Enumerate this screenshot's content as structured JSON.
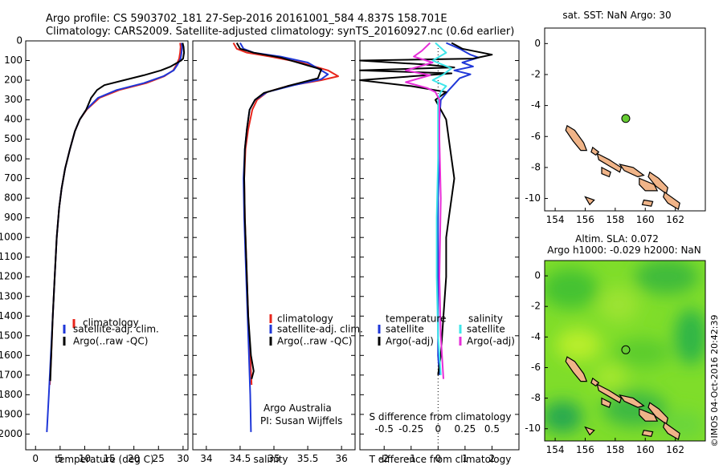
{
  "header": {
    "title_line1": "Argo profile: CS 5903702_181 27-Sep-2016 20161001_584 4.837S 158.701E",
    "title_line2": "Climatology: CARS2009. Satellite-adjusted climatology: synTS_20160927.nc (0.6d earlier)"
  },
  "colors": {
    "climatology": "#e8261c",
    "satellite": "#1f37d8",
    "argo": "#000000",
    "sal_satellite": "#3ee6ea",
    "sal_argo": "#e62ed8",
    "island": "#f0b488",
    "float": "#66cc33"
  },
  "chart_data": [
    {
      "type": "line",
      "id": "temperature",
      "xlabel": "temperature (deg C)",
      "xlim": [
        -2,
        31
      ],
      "ylim": [
        2080,
        0
      ],
      "x_ticks": [
        0,
        5,
        10,
        15,
        20,
        25,
        30
      ],
      "x_tick_labels": [
        "0",
        "5",
        "10",
        "15",
        "20",
        "25",
        "30"
      ],
      "y_ticks": [
        0,
        100,
        200,
        300,
        400,
        500,
        600,
        700,
        800,
        900,
        1000,
        1100,
        1200,
        1300,
        1400,
        1500,
        1600,
        1700,
        1800,
        1900,
        2000
      ],
      "y_tick_labels": [
        "0",
        "100",
        "200",
        "300",
        "400",
        "500",
        "600",
        "700",
        "800",
        "900",
        "1000",
        "1100",
        "1200",
        "1300",
        "1400",
        "1500",
        "1600",
        "1700",
        "1800",
        "1900",
        "2000"
      ],
      "legend": [
        "climatology",
        "satellite-adj. clim.",
        "Argo(..raw -QC)"
      ],
      "series": [
        {
          "name": "climatology",
          "color": "#e8261c",
          "points": [
            [
              29.4,
              10
            ],
            [
              29.5,
              30
            ],
            [
              29.4,
              60
            ],
            [
              29.2,
              90
            ],
            [
              28.7,
              120
            ],
            [
              28,
              150
            ],
            [
              26.2,
              180
            ],
            [
              22.5,
              215
            ],
            [
              17,
              250
            ],
            [
              13,
              290
            ],
            [
              10.4,
              350
            ],
            [
              9,
              400
            ],
            [
              8,
              460
            ],
            [
              7,
              550
            ],
            [
              6,
              650
            ],
            [
              5.3,
              750
            ],
            [
              4.8,
              850
            ],
            [
              4.3,
              1000
            ],
            [
              3.9,
              1200
            ],
            [
              3.5,
              1400
            ],
            [
              3.2,
              1600
            ],
            [
              2.9,
              1750
            ]
          ]
        },
        {
          "name": "satellite-adj. clim.",
          "color": "#1f37d8",
          "points": [
            [
              29.7,
              10
            ],
            [
              29.8,
              30
            ],
            [
              29.7,
              60
            ],
            [
              29.5,
              90
            ],
            [
              28.9,
              120
            ],
            [
              28.1,
              150
            ],
            [
              26,
              180
            ],
            [
              22,
              215
            ],
            [
              16.5,
              250
            ],
            [
              12.7,
              290
            ],
            [
              10.3,
              350
            ],
            [
              9,
              400
            ],
            [
              8,
              460
            ],
            [
              7,
              550
            ],
            [
              6,
              650
            ],
            [
              5.3,
              750
            ],
            [
              4.8,
              850
            ],
            [
              4.3,
              1000
            ],
            [
              3.9,
              1200
            ],
            [
              3.5,
              1400
            ],
            [
              3.1,
              1600
            ],
            [
              2.7,
              1800
            ],
            [
              2.3,
              1990
            ]
          ]
        },
        {
          "name": "Argo(..raw -QC)",
          "color": "#000000",
          "points": [
            [
              29.9,
              10
            ],
            [
              30.1,
              30
            ],
            [
              30.2,
              60
            ],
            [
              30,
              90
            ],
            [
              29.6,
              100
            ],
            [
              27.5,
              130
            ],
            [
              25.5,
              150
            ],
            [
              22,
              175
            ],
            [
              18,
              200
            ],
            [
              14,
              225
            ],
            [
              12.5,
              250
            ],
            [
              11.3,
              290
            ],
            [
              10.3,
              350
            ],
            [
              9,
              400
            ],
            [
              8,
              460
            ],
            [
              7,
              550
            ],
            [
              6,
              650
            ],
            [
              5.3,
              750
            ],
            [
              4.8,
              850
            ],
            [
              4.3,
              1000
            ],
            [
              3.9,
              1200
            ],
            [
              3.5,
              1400
            ],
            [
              3.2,
              1600
            ],
            [
              3,
              1730
            ]
          ]
        }
      ]
    },
    {
      "type": "line",
      "id": "salinity",
      "xlabel": "salinity",
      "xlim": [
        33.8,
        36.2
      ],
      "ylim": [
        2080,
        0
      ],
      "x_ticks": [
        34,
        34.5,
        35,
        35.5,
        36
      ],
      "x_tick_labels": [
        "34",
        "34.5",
        "35",
        "35.5",
        "36"
      ],
      "legend": [
        "climatology",
        "satellite-adj. clim.",
        "Argo(..raw -QC)"
      ],
      "annotations": [
        "Argo Australia",
        "PI: Susan Wijffels"
      ],
      "series": [
        {
          "name": "climatology",
          "color": "#e8261c",
          "points": [
            [
              34.4,
              10
            ],
            [
              34.45,
              40
            ],
            [
              34.6,
              60
            ],
            [
              34.95,
              80
            ],
            [
              35.4,
              110
            ],
            [
              35.8,
              150
            ],
            [
              35.95,
              180
            ],
            [
              35.7,
              200
            ],
            [
              35.2,
              230
            ],
            [
              34.9,
              260
            ],
            [
              34.75,
              300
            ],
            [
              34.68,
              350
            ],
            [
              34.62,
              450
            ],
            [
              34.58,
              550
            ],
            [
              34.56,
              700
            ],
            [
              34.57,
              900
            ],
            [
              34.59,
              1100
            ],
            [
              34.62,
              1400
            ],
            [
              34.65,
              1600
            ],
            [
              34.67,
              1750
            ]
          ]
        },
        {
          "name": "satellite-adj. clim.",
          "color": "#1f37d8",
          "points": [
            [
              34.5,
              10
            ],
            [
              34.55,
              40
            ],
            [
              34.7,
              60
            ],
            [
              35.1,
              80
            ],
            [
              35.5,
              110
            ],
            [
              35.7,
              150
            ],
            [
              35.8,
              170
            ],
            [
              35.7,
              195
            ],
            [
              35.3,
              225
            ],
            [
              34.9,
              260
            ],
            [
              34.72,
              300
            ],
            [
              34.64,
              350
            ],
            [
              34.6,
              450
            ],
            [
              34.57,
              550
            ],
            [
              34.55,
              700
            ],
            [
              34.56,
              900
            ],
            [
              34.58,
              1100
            ],
            [
              34.61,
              1400
            ],
            [
              34.63,
              1600
            ],
            [
              34.65,
              1800
            ],
            [
              34.66,
              1990
            ]
          ]
        },
        {
          "name": "Argo(..raw -QC)",
          "color": "#000000",
          "points": [
            [
              34.45,
              10
            ],
            [
              34.5,
              40
            ],
            [
              34.7,
              60
            ],
            [
              35.1,
              85
            ],
            [
              35.7,
              145
            ],
            [
              35.65,
              190
            ],
            [
              35.2,
              230
            ],
            [
              34.85,
              265
            ],
            [
              34.72,
              300
            ],
            [
              34.64,
              350
            ],
            [
              34.6,
              450
            ],
            [
              34.57,
              550
            ],
            [
              34.56,
              700
            ],
            [
              34.57,
              900
            ],
            [
              34.59,
              1100
            ],
            [
              34.62,
              1400
            ],
            [
              34.66,
              1600
            ],
            [
              34.7,
              1680
            ],
            [
              34.67,
              1720
            ]
          ]
        }
      ]
    },
    {
      "type": "line",
      "id": "difference",
      "xlabel": "T difference from climatology",
      "xlabel_top": "S difference from climatology",
      "xlim": [
        -2.9,
        3
      ],
      "ylim": [
        2080,
        0
      ],
      "x_ticks": [
        -2,
        -1,
        0,
        1,
        2
      ],
      "x_tick_labels": [
        "-2",
        "-1",
        "0",
        "1",
        "2"
      ],
      "top_ticks": [
        -0.5,
        -0.25,
        0,
        0.25,
        0.5
      ],
      "top_tick_labels": [
        "-0.5",
        "-0.25",
        "0",
        "0.25",
        "0.5"
      ],
      "legend_titles": [
        "temperature",
        "salinity"
      ],
      "legend_temperature": [
        "satellite",
        "Argo(-adj)"
      ],
      "legend_salinity": [
        "satellite",
        "Argo(-adj)"
      ],
      "series": [
        {
          "name": "satellite",
          "group": "temperature",
          "color": "#1f37d8",
          "points": [
            [
              0.3,
              10
            ],
            [
              0.8,
              40
            ],
            [
              1.2,
              70
            ],
            [
              1.5,
              85
            ],
            [
              0.9,
              110
            ],
            [
              1.3,
              130
            ],
            [
              0.6,
              150
            ],
            [
              1.2,
              170
            ],
            [
              0.8,
              190
            ],
            [
              0.6,
              220
            ],
            [
              0.4,
              250
            ],
            [
              0.1,
              300
            ],
            [
              0.05,
              400
            ],
            [
              0.05,
              600
            ],
            [
              0,
              800
            ],
            [
              0,
              1000
            ],
            [
              0,
              1200
            ],
            [
              0,
              1400
            ],
            [
              0,
              1600
            ],
            [
              0.05,
              1700
            ]
          ]
        },
        {
          "name": "Argo(-adj)",
          "group": "temperature",
          "color": "#000000",
          "points": [
            [
              0.5,
              10
            ],
            [
              0.9,
              40
            ],
            [
              2,
              70
            ],
            [
              1.3,
              90
            ],
            [
              -2.9,
              100
            ],
            [
              -0.5,
              120
            ],
            [
              0.6,
              135
            ],
            [
              -2.9,
              150
            ],
            [
              0.5,
              165
            ],
            [
              -2.9,
              200
            ],
            [
              -1,
              230
            ],
            [
              0.3,
              260
            ],
            [
              -0.1,
              300
            ],
            [
              0.1,
              350
            ],
            [
              0.3,
              400
            ],
            [
              0.4,
              500
            ],
            [
              0.5,
              600
            ],
            [
              0.6,
              700
            ],
            [
              0.5,
              800
            ],
            [
              0.4,
              900
            ],
            [
              0.3,
              1000
            ],
            [
              0.3,
              1200
            ],
            [
              0.2,
              1400
            ],
            [
              0.1,
              1600
            ],
            [
              0,
              1700
            ]
          ]
        },
        {
          "name": "satellite",
          "group": "salinity",
          "color": "#3ee6ea",
          "points": [
            [
              -0.1,
              10
            ],
            [
              0.3,
              60
            ],
            [
              -0.2,
              100
            ],
            [
              0.5,
              140
            ],
            [
              0.2,
              170
            ],
            [
              -0.2,
              200
            ],
            [
              0.3,
              230
            ],
            [
              0.1,
              260
            ],
            [
              0,
              300
            ],
            [
              0,
              600
            ],
            [
              -0.05,
              900
            ],
            [
              -0.05,
              1200
            ],
            [
              0,
              1500
            ],
            [
              0.1,
              1700
            ]
          ]
        },
        {
          "name": "Argo(-adj)",
          "group": "salinity",
          "color": "#e62ed8",
          "points": [
            [
              -0.3,
              10
            ],
            [
              -0.6,
              50
            ],
            [
              -0.9,
              80
            ],
            [
              -0.2,
              110
            ],
            [
              -1.2,
              150
            ],
            [
              -0.3,
              175
            ],
            [
              -1.2,
              210
            ],
            [
              -0.4,
              240
            ],
            [
              -0.1,
              260
            ],
            [
              0.05,
              300
            ],
            [
              0.05,
              500
            ],
            [
              0.1,
              800
            ],
            [
              0.05,
              1200
            ],
            [
              0.1,
              1500
            ],
            [
              0.2,
              1720
            ]
          ]
        }
      ]
    },
    {
      "type": "map",
      "id": "sst_map",
      "title": "sat. SST: NaN Argo: 30",
      "xlim": [
        153.3,
        164
      ],
      "ylim": [
        -10.8,
        1
      ],
      "x_ticks": [
        154,
        156,
        158,
        160,
        162
      ],
      "x_tick_labels": [
        "154",
        "156",
        "158",
        "160",
        "162"
      ],
      "y_ticks": [
        0,
        -2,
        -4,
        -6,
        -8,
        -10
      ],
      "y_tick_labels": [
        "0",
        "-2",
        "-4",
        "-6",
        "-8",
        "-10"
      ],
      "float_position": {
        "lon": 158.701,
        "lat": -4.837
      }
    },
    {
      "type": "map",
      "id": "sla_map",
      "title_line1": "Altim. SLA: 0.072",
      "title_line2": "Argo h1000: -0.029 h2000: NaN",
      "xlim": [
        153.3,
        164
      ],
      "ylim": [
        -10.8,
        1
      ],
      "x_ticks": [
        154,
        156,
        158,
        160,
        162
      ],
      "x_tick_labels": [
        "154",
        "156",
        "158",
        "160",
        "162"
      ],
      "y_ticks": [
        0,
        -2,
        -4,
        -6,
        -8,
        -10
      ],
      "y_tick_labels": [
        "0",
        "-2",
        "-4",
        "-6",
        "-8",
        "-10"
      ],
      "float_position": {
        "lon": 158.701,
        "lat": -4.837
      }
    }
  ],
  "credit": "©IMOS 04-Oct-2016 20:42:39"
}
